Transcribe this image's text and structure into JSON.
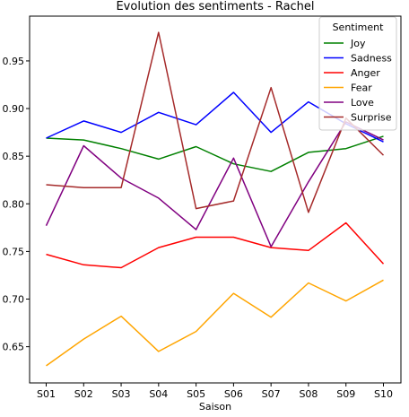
{
  "chart_data": {
    "type": "line",
    "title": "Evolution des sentiments - Rachel",
    "xlabel": "Saison",
    "ylabel": "",
    "categories": [
      "S01",
      "S02",
      "S03",
      "S04",
      "S05",
      "S06",
      "S07",
      "S08",
      "S09",
      "S10"
    ],
    "ylim": [
      0.612,
      0.997
    ],
    "yticks": [
      0.65,
      0.7,
      0.75,
      0.8,
      0.85,
      0.9,
      0.95
    ],
    "ytick_labels": [
      "0.65",
      "0.70",
      "0.75",
      "0.80",
      "0.85",
      "0.90",
      "0.95"
    ],
    "grid": false,
    "legend": {
      "title": "Sentiment",
      "placement": "top-right"
    },
    "series": [
      {
        "name": "Joy",
        "color": "#008000",
        "values": [
          0.869,
          0.867,
          0.858,
          0.847,
          0.86,
          0.842,
          0.834,
          0.854,
          0.858,
          0.871
        ]
      },
      {
        "name": "Sadness",
        "color": "#0000ff",
        "values": [
          0.869,
          0.887,
          0.875,
          0.896,
          0.883,
          0.917,
          0.875,
          0.907,
          0.884,
          0.865
        ]
      },
      {
        "name": "Anger",
        "color": "#ff0000",
        "values": [
          0.747,
          0.736,
          0.733,
          0.754,
          0.765,
          0.765,
          0.754,
          0.751,
          0.78,
          0.737
        ]
      },
      {
        "name": "Fear",
        "color": "#ffa500",
        "values": [
          0.63,
          0.658,
          0.682,
          0.645,
          0.666,
          0.706,
          0.681,
          0.717,
          0.698,
          0.72
        ]
      },
      {
        "name": "Love",
        "color": "#800080",
        "values": [
          0.777,
          0.861,
          0.827,
          0.806,
          0.773,
          0.848,
          0.755,
          0.823,
          0.886,
          0.867
        ]
      },
      {
        "name": "Surprise",
        "color": "#a52a2a",
        "values": [
          0.82,
          0.817,
          0.817,
          0.98,
          0.795,
          0.803,
          0.922,
          0.791,
          0.89,
          0.851
        ]
      }
    ]
  }
}
